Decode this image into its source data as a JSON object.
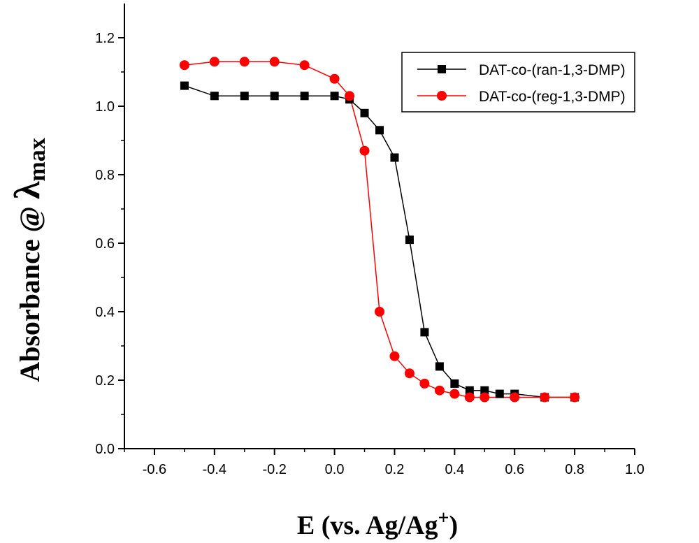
{
  "chart_data": {
    "type": "line",
    "xlabel": "E (vs. Ag/Ag",
    "xlabel_sup": "+",
    "xlabel_close": ")",
    "ylabel": "Absorbance @ ",
    "ylabel_symbol": "λ",
    "ylabel_sub": "max",
    "xlim": [
      -0.7,
      1.0
    ],
    "ylim": [
      0.0,
      1.3
    ],
    "x_ticks": [
      "-0.6",
      "-0.4",
      "-0.2",
      "0.0",
      "0.2",
      "0.4",
      "0.6",
      "0.8",
      "1.0"
    ],
    "x_tick_values": [
      -0.6,
      -0.4,
      -0.2,
      0.0,
      0.2,
      0.4,
      0.6,
      0.8,
      1.0
    ],
    "y_ticks": [
      "0.0",
      "0.2",
      "0.4",
      "0.6",
      "0.8",
      "1.0",
      "1.2"
    ],
    "y_tick_values": [
      0.0,
      0.2,
      0.4,
      0.6,
      0.8,
      1.0,
      1.2
    ],
    "grid": false,
    "legend_position": "top-right",
    "series": [
      {
        "name": "DAT-co-(ran-1,3-DMP)",
        "color": "#000000",
        "marker": "square",
        "x": [
          -0.5,
          -0.4,
          -0.3,
          -0.2,
          -0.1,
          0.0,
          0.05,
          0.1,
          0.15,
          0.2,
          0.25,
          0.3,
          0.35,
          0.4,
          0.45,
          0.5,
          0.55,
          0.6,
          0.7,
          0.8
        ],
        "y": [
          1.06,
          1.03,
          1.03,
          1.03,
          1.03,
          1.03,
          1.02,
          0.98,
          0.93,
          0.85,
          0.61,
          0.34,
          0.24,
          0.19,
          0.17,
          0.17,
          0.16,
          0.16,
          0.15,
          0.15
        ]
      },
      {
        "name": "DAT-co-(reg-1,3-DMP)",
        "color": "#ff0000",
        "marker": "circle",
        "x": [
          -0.5,
          -0.4,
          -0.3,
          -0.2,
          -0.1,
          0.0,
          0.05,
          0.1,
          0.15,
          0.2,
          0.25,
          0.3,
          0.35,
          0.4,
          0.45,
          0.5,
          0.6,
          0.7,
          0.8
        ],
        "y": [
          1.12,
          1.13,
          1.13,
          1.13,
          1.12,
          1.08,
          1.03,
          0.87,
          0.4,
          0.27,
          0.22,
          0.19,
          0.17,
          0.16,
          0.15,
          0.15,
          0.15,
          0.15,
          0.15
        ]
      }
    ]
  }
}
